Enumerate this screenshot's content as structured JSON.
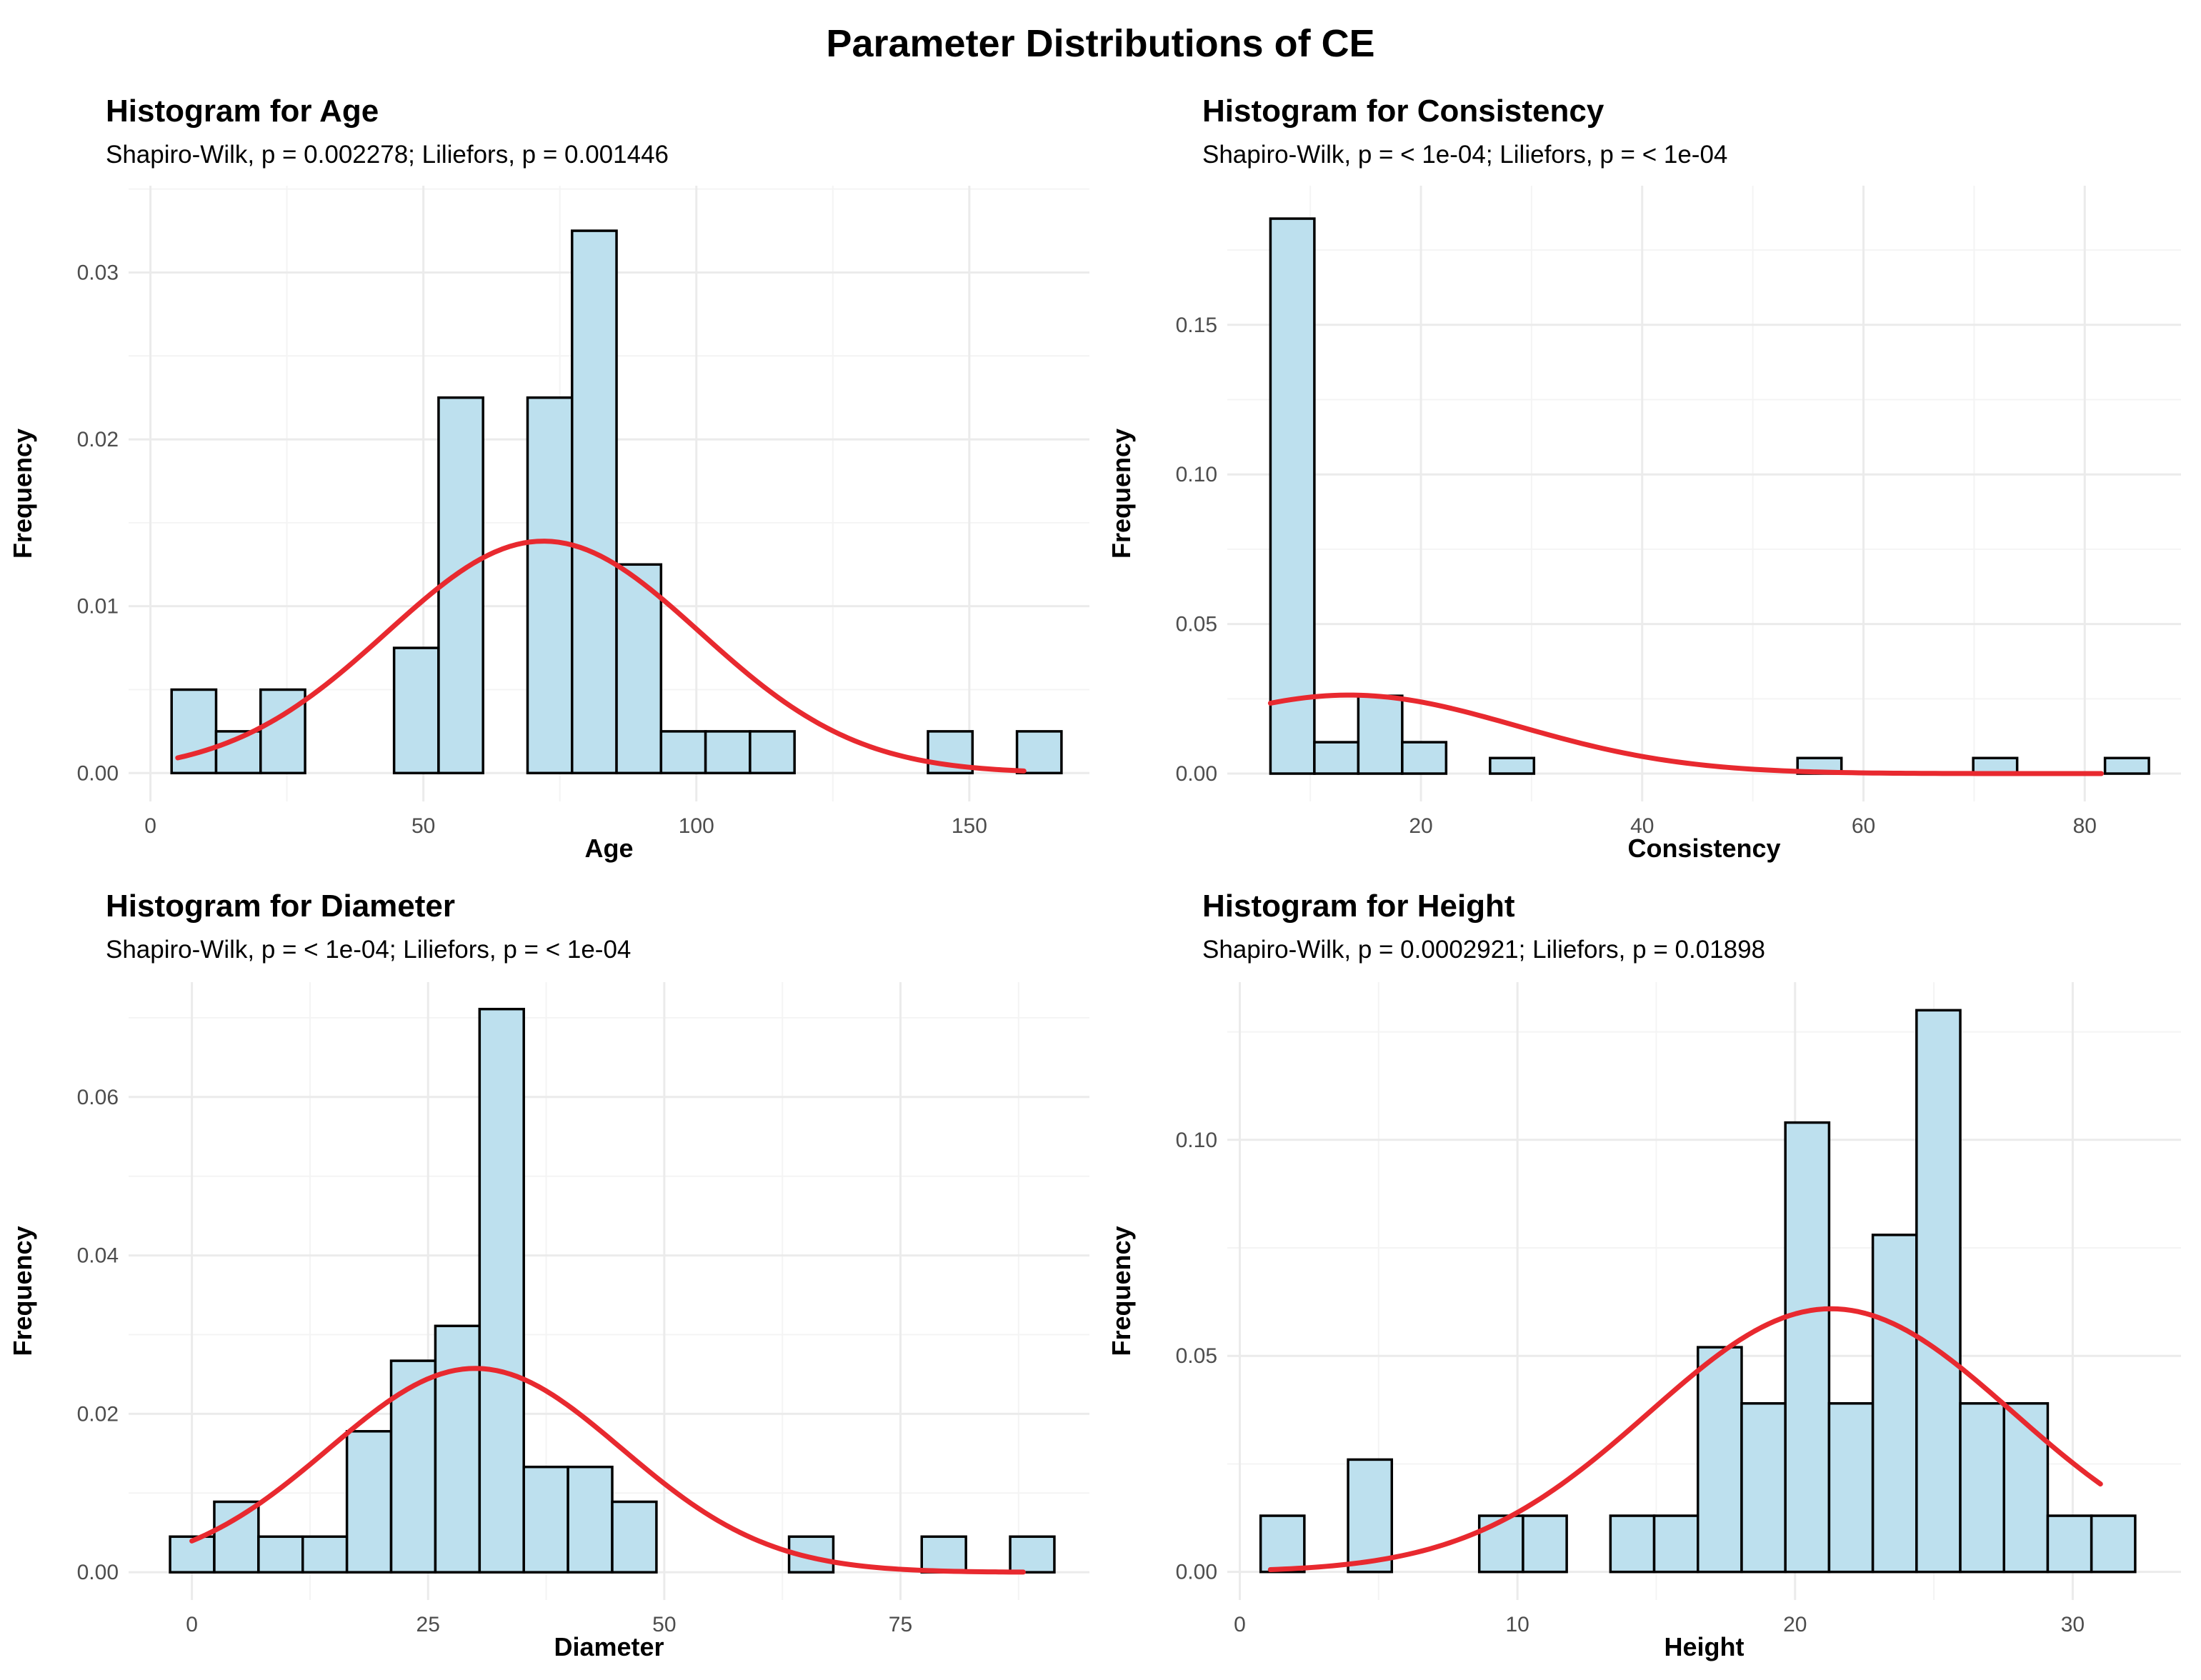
{
  "figure_title": "Parameter Distributions of CE",
  "colors": {
    "bar_fill": "#bde0ee",
    "bar_stroke": "#000000",
    "curve": "#e8292f",
    "grid": "#ebebeb",
    "text": "#000000",
    "tick": "#4d4d4d"
  },
  "chart_data": [
    {
      "type": "bar",
      "title": "Histogram for Age",
      "subtitle": "Shapiro-Wilk, p = 0.002278; Liliefors, p = 0.001446",
      "xlabel": "Age",
      "ylabel": "Frequency",
      "xlim": [
        -4,
        172
      ],
      "ylim": [
        -0.0017,
        0.0352
      ],
      "xticks": [
        0,
        50,
        100,
        150
      ],
      "xtick_labels": [
        "0",
        "50",
        "100",
        "150"
      ],
      "yticks": [
        0,
        0.01,
        0.02,
        0.03
      ],
      "ytick_labels": [
        "0.00",
        "0.01",
        "0.02",
        "0.03"
      ],
      "bin_width": 8.15,
      "bins": [
        {
          "x0": 3.88,
          "value": 0.005
        },
        {
          "x0": 12.03,
          "value": 0.0025
        },
        {
          "x0": 20.18,
          "value": 0.005
        },
        {
          "x0": 28.33,
          "value": 0
        },
        {
          "x0": 36.48,
          "value": 0
        },
        {
          "x0": 44.63,
          "value": 0.0075
        },
        {
          "x0": 52.78,
          "value": 0.0225
        },
        {
          "x0": 60.93,
          "value": 0
        },
        {
          "x0": 69.08,
          "value": 0.0225
        },
        {
          "x0": 77.23,
          "value": 0.0325
        },
        {
          "x0": 85.38,
          "value": 0.0125
        },
        {
          "x0": 93.53,
          "value": 0.0025
        },
        {
          "x0": 101.68,
          "value": 0.0025
        },
        {
          "x0": 109.83,
          "value": 0.0025
        },
        {
          "x0": 117.98,
          "value": 0
        },
        {
          "x0": 126.13,
          "value": 0
        },
        {
          "x0": 134.28,
          "value": 0
        },
        {
          "x0": 142.43,
          "value": 0.0025
        },
        {
          "x0": 150.58,
          "value": 0
        },
        {
          "x0": 158.73,
          "value": 0.0025
        }
      ],
      "curve": {
        "type": "normal",
        "mean": 72,
        "sd": 28.7,
        "scale": 1.0,
        "x_range": [
          5,
          160
        ]
      }
    },
    {
      "type": "bar",
      "title": "Histogram for Consistency",
      "subtitle": "Shapiro-Wilk, p = < 1e-04; Liliefors, p = < 1e-04",
      "xlabel": "Consistency",
      "ylabel": "Frequency",
      "xlim": [
        2.5,
        88.7
      ],
      "ylim": [
        -0.0093,
        0.1965
      ],
      "xticks": [
        20,
        40,
        60,
        80
      ],
      "xtick_labels": [
        "20",
        "40",
        "60",
        "80"
      ],
      "yticks": [
        0,
        0.05,
        0.1,
        0.15
      ],
      "ytick_labels": [
        "0.00",
        "0.05",
        "0.10",
        "0.15"
      ],
      "bin_width": 3.97,
      "bins": [
        {
          "x0": 6.4,
          "value": 0.1855
        },
        {
          "x0": 10.37,
          "value": 0.0105
        },
        {
          "x0": 14.34,
          "value": 0.026
        },
        {
          "x0": 18.31,
          "value": 0.0105
        },
        {
          "x0": 22.28,
          "value": 0
        },
        {
          "x0": 26.25,
          "value": 0.0052
        },
        {
          "x0": 30.22,
          "value": 0
        },
        {
          "x0": 34.19,
          "value": 0
        },
        {
          "x0": 38.16,
          "value": 0
        },
        {
          "x0": 42.13,
          "value": 0
        },
        {
          "x0": 46.1,
          "value": 0
        },
        {
          "x0": 50.07,
          "value": 0
        },
        {
          "x0": 54.04,
          "value": 0.0052
        },
        {
          "x0": 58.01,
          "value": 0
        },
        {
          "x0": 61.98,
          "value": 0
        },
        {
          "x0": 65.95,
          "value": 0
        },
        {
          "x0": 69.92,
          "value": 0.0052
        },
        {
          "x0": 73.89,
          "value": 0
        },
        {
          "x0": 77.86,
          "value": 0
        },
        {
          "x0": 81.83,
          "value": 0.0052
        }
      ],
      "curve": {
        "type": "normal",
        "mean": 13.5,
        "sd": 15.2,
        "scale": 1.0,
        "x_range": [
          6.4,
          81.5
        ]
      }
    },
    {
      "type": "bar",
      "title": "Histogram for Diameter",
      "subtitle": "Shapiro-Wilk, p = < 1e-04; Liliefors, p = < 1e-04",
      "xlabel": "Diameter",
      "ylabel": "Frequency",
      "xlim": [
        -6.7,
        95
      ],
      "ylim": [
        -0.0035,
        0.0745
      ],
      "xticks": [
        0,
        25,
        50,
        75
      ],
      "xtick_labels": [
        "0",
        "25",
        "50",
        "75"
      ],
      "yticks": [
        0,
        0.02,
        0.04,
        0.06
      ],
      "ytick_labels": [
        "0.00",
        "0.02",
        "0.04",
        "0.06"
      ],
      "bin_width": 4.68,
      "bins": [
        {
          "x0": -2.31,
          "value": 0.0045
        },
        {
          "x0": 2.37,
          "value": 0.0089
        },
        {
          "x0": 7.05,
          "value": 0.0045
        },
        {
          "x0": 11.73,
          "value": 0.0045
        },
        {
          "x0": 16.41,
          "value": 0.0178
        },
        {
          "x0": 21.09,
          "value": 0.0267
        },
        {
          "x0": 25.77,
          "value": 0.0311
        },
        {
          "x0": 30.45,
          "value": 0.0711
        },
        {
          "x0": 35.13,
          "value": 0.0133
        },
        {
          "x0": 39.81,
          "value": 0.0133
        },
        {
          "x0": 44.49,
          "value": 0.0089
        },
        {
          "x0": 49.17,
          "value": 0
        },
        {
          "x0": 53.85,
          "value": 0
        },
        {
          "x0": 58.53,
          "value": 0
        },
        {
          "x0": 63.21,
          "value": 0.0045
        },
        {
          "x0": 67.89,
          "value": 0
        },
        {
          "x0": 72.57,
          "value": 0
        },
        {
          "x0": 77.25,
          "value": 0.0045
        },
        {
          "x0": 81.93,
          "value": 0
        },
        {
          "x0": 86.61,
          "value": 0.0045
        }
      ],
      "curve": {
        "type": "normal",
        "mean": 30,
        "sd": 15.5,
        "scale": 1.0,
        "x_range": [
          0,
          88
        ]
      }
    },
    {
      "type": "bar",
      "title": "Histogram for Height",
      "subtitle": "Shapiro-Wilk, p = 0.0002921; Liliefors, p = 0.01898",
      "xlabel": "Height",
      "ylabel": "Frequency",
      "xlim": [
        -0.45,
        33.9
      ],
      "ylim": [
        -0.0065,
        0.1365
      ],
      "xticks": [
        0,
        10,
        20,
        30
      ],
      "xtick_labels": [
        "0",
        "10",
        "20",
        "30"
      ],
      "yticks": [
        0,
        0.05,
        0.1
      ],
      "ytick_labels": [
        "0.00",
        "0.05",
        "0.10"
      ],
      "bin_width": 1.575,
      "bins": [
        {
          "x0": 0.75,
          "value": 0.013
        },
        {
          "x0": 2.325,
          "value": 0
        },
        {
          "x0": 3.9,
          "value": 0.026
        },
        {
          "x0": 5.475,
          "value": 0
        },
        {
          "x0": 7.05,
          "value": 0
        },
        {
          "x0": 8.625,
          "value": 0.013
        },
        {
          "x0": 10.2,
          "value": 0.013
        },
        {
          "x0": 11.775,
          "value": 0
        },
        {
          "x0": 13.35,
          "value": 0.013
        },
        {
          "x0": 14.925,
          "value": 0.013
        },
        {
          "x0": 16.5,
          "value": 0.052
        },
        {
          "x0": 18.075,
          "value": 0.039
        },
        {
          "x0": 19.65,
          "value": 0.104
        },
        {
          "x0": 21.225,
          "value": 0.039
        },
        {
          "x0": 22.8,
          "value": 0.078
        },
        {
          "x0": 24.375,
          "value": 0.13
        },
        {
          "x0": 25.95,
          "value": 0.039
        },
        {
          "x0": 27.525,
          "value": 0.039
        },
        {
          "x0": 29.1,
          "value": 0.013
        },
        {
          "x0": 30.675,
          "value": 0.013
        }
      ],
      "curve": {
        "type": "normal",
        "mean": 21.3,
        "sd": 6.55,
        "scale": 1.0,
        "x_range": [
          1.1,
          31
        ]
      }
    }
  ]
}
